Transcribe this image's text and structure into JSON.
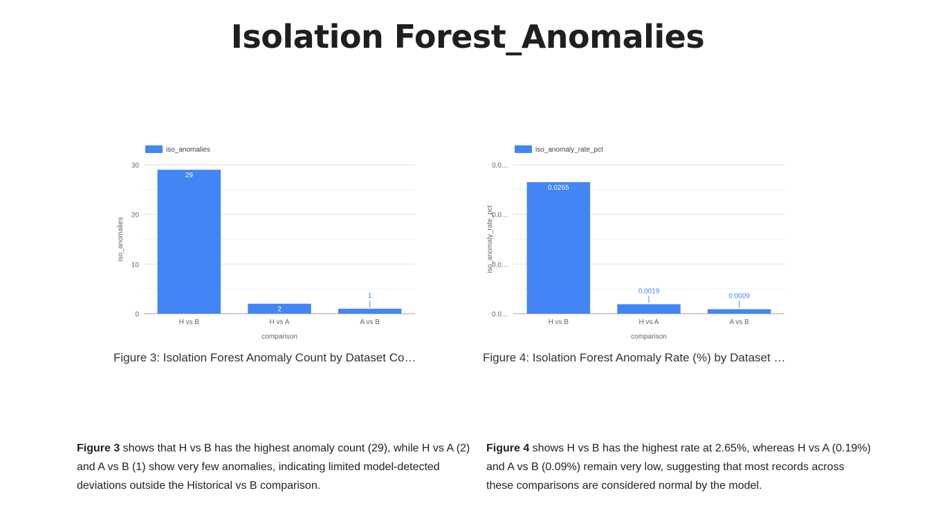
{
  "page": {
    "title": "Isolation Forest_Anomalies"
  },
  "captions": {
    "left": "Figure 3: Isolation Forest Anomaly Count by Dataset Co…",
    "right": "Figure 4: Isolation Forest Anomaly Rate (%) by Dataset …"
  },
  "paragraphs": {
    "left": {
      "lead": "Figure 3",
      "body": " shows that H vs B has the highest anomaly count (29), while H vs A (2) and A vs B (1) show very few anomalies, indicating limited model-detected deviations outside the Historical vs B comparison."
    },
    "right": {
      "lead": "Figure 4",
      "body": " shows H vs B has the highest rate at 2.65%, whereas H vs A (0.19%) and A vs B (0.09%) remain very low, suggesting that most records across these comparisons are considered normal by the model."
    }
  },
  "colors": {
    "bar": "#4285f4",
    "grid": "#e0e0e0",
    "axis": "#9e9e9e",
    "text": "#5f6368",
    "label_inside": "#ffffff",
    "label_outside": "#4285f4"
  },
  "chart_data": [
    {
      "type": "bar",
      "categories": [
        "H vs B",
        "H vs A",
        "A vs B"
      ],
      "series": [
        {
          "name": "iso_anomalies",
          "values": [
            29,
            2,
            1
          ]
        }
      ],
      "value_labels": [
        "29",
        "2",
        "1"
      ],
      "title": "",
      "xlabel": "comparison",
      "ylabel": "iso_anomalies",
      "ylim": [
        0,
        30
      ],
      "yticks": [
        0,
        10,
        20,
        30
      ],
      "ytick_labels": [
        "0",
        "10",
        "20",
        "30"
      ],
      "grid": true,
      "legend": "top-left"
    },
    {
      "type": "bar",
      "categories": [
        "H vs B",
        "H vs A",
        "A vs B"
      ],
      "series": [
        {
          "name": "iso_anomaly_rate_pct",
          "values": [
            0.0265,
            0.0019,
            0.0009
          ]
        }
      ],
      "value_labels": [
        "0.0265",
        "0.0019",
        "0.0009"
      ],
      "title": "",
      "xlabel": "comparison",
      "ylabel": "iso_anomaly_rate_pct",
      "ylim": [
        0,
        0.03
      ],
      "yticks": [
        0,
        0.01,
        0.02,
        0.03
      ],
      "ytick_labels": [
        "0.0…",
        "0.0…",
        "0.0…",
        "0.0…"
      ],
      "grid": true,
      "legend": "top-left"
    }
  ]
}
